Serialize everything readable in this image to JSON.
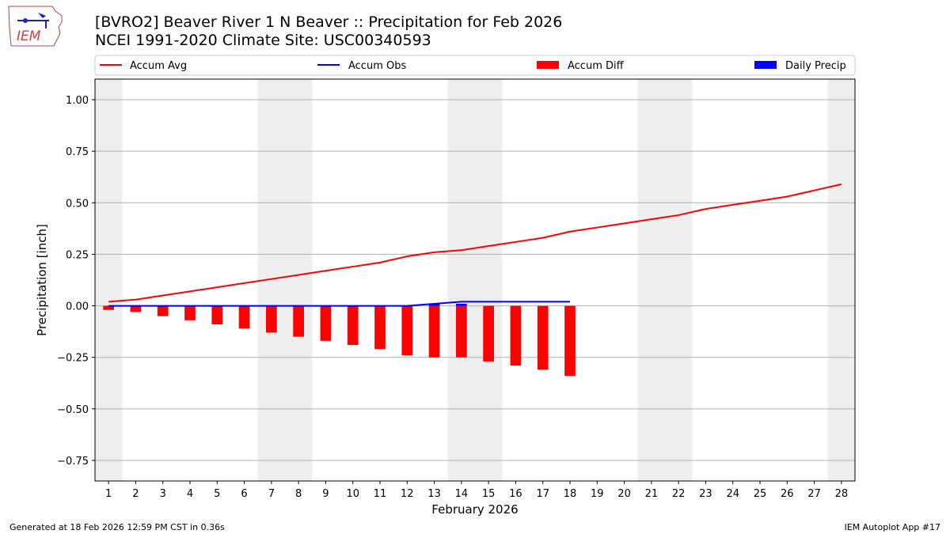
{
  "title_line1": "[BVRO2] Beaver River 1 N Beaver :: Precipitation for Feb 2026",
  "title_line2": "NCEI 1991-2020 Climate Site: USC00340593",
  "logo_text": "IEM",
  "footer_left": "Generated at 18 Feb 2026 12:59 PM CST in 0.36s",
  "footer_right": "IEM Autoplot App #17",
  "colors": {
    "avg": "#ff0000",
    "obs": "#0000ff",
    "diff": "#ff0000",
    "daily": "#0000ff",
    "weekend": "#eeeeee",
    "grid": "#b0b0b0"
  },
  "chart_data": {
    "type": "line+bar",
    "title": "[BVRO2] Beaver River 1 N Beaver :: Precipitation for Feb 2026",
    "subtitle": "NCEI 1991-2020 Climate Site: USC00340593",
    "xlabel": "February 2026",
    "ylabel": "Precipitation [inch]",
    "xlim": [
      0.5,
      28.5
    ],
    "ylim": [
      -0.85,
      1.1
    ],
    "x_ticks": [
      1,
      2,
      3,
      4,
      5,
      6,
      7,
      8,
      9,
      10,
      11,
      12,
      13,
      14,
      15,
      16,
      17,
      18,
      19,
      20,
      21,
      22,
      23,
      24,
      25,
      26,
      27,
      28
    ],
    "y_ticks": [
      -0.75,
      -0.5,
      -0.25,
      0.0,
      0.25,
      0.5,
      0.75,
      1.0
    ],
    "y_tick_labels": [
      "−0.75",
      "−0.50",
      "−0.25",
      "0.00",
      "0.25",
      "0.50",
      "0.75",
      "1.00"
    ],
    "grid": "horizontal",
    "legend": [
      "Accum Avg",
      "Accum Obs",
      "Accum Diff",
      "Daily Precip"
    ],
    "legend_position": "top",
    "weekend_days": [
      1,
      7,
      8,
      14,
      15,
      21,
      22,
      28
    ],
    "series": [
      {
        "name": "Accum Avg",
        "kind": "line",
        "days": [
          1,
          2,
          3,
          4,
          5,
          6,
          7,
          8,
          9,
          10,
          11,
          12,
          13,
          14,
          15,
          16,
          17,
          18,
          19,
          20,
          21,
          22,
          23,
          24,
          25,
          26,
          27,
          28
        ],
        "values": [
          0.02,
          0.03,
          0.05,
          0.07,
          0.09,
          0.11,
          0.13,
          0.15,
          0.17,
          0.19,
          0.21,
          0.24,
          0.26,
          0.27,
          0.29,
          0.31,
          0.33,
          0.36,
          0.38,
          0.4,
          0.42,
          0.44,
          0.47,
          0.49,
          0.51,
          0.53,
          0.56,
          0.59
        ]
      },
      {
        "name": "Accum Obs",
        "kind": "line",
        "days": [
          1,
          2,
          3,
          4,
          5,
          6,
          7,
          8,
          9,
          10,
          11,
          12,
          13,
          14,
          15,
          16,
          17,
          18
        ],
        "values": [
          0,
          0,
          0,
          0,
          0,
          0,
          0,
          0,
          0,
          0,
          0,
          0,
          0.01,
          0.02,
          0.02,
          0.02,
          0.02,
          0.02
        ]
      },
      {
        "name": "Accum Diff",
        "kind": "bar",
        "days": [
          1,
          2,
          3,
          4,
          5,
          6,
          7,
          8,
          9,
          10,
          11,
          12,
          13,
          14,
          15,
          16,
          17,
          18
        ],
        "values": [
          -0.02,
          -0.03,
          -0.05,
          -0.07,
          -0.09,
          -0.11,
          -0.13,
          -0.15,
          -0.17,
          -0.19,
          -0.21,
          -0.24,
          -0.25,
          -0.25,
          -0.27,
          -0.29,
          -0.31,
          -0.34
        ]
      },
      {
        "name": "Daily Precip",
        "kind": "bar",
        "days": [
          1,
          2,
          3,
          4,
          5,
          6,
          7,
          8,
          9,
          10,
          11,
          12,
          13,
          14,
          15,
          16,
          17,
          18
        ],
        "values": [
          0,
          0,
          0,
          0,
          0,
          0,
          0,
          0,
          0,
          0,
          0,
          0,
          0.01,
          0.01,
          0,
          0,
          0,
          0
        ]
      }
    ]
  }
}
